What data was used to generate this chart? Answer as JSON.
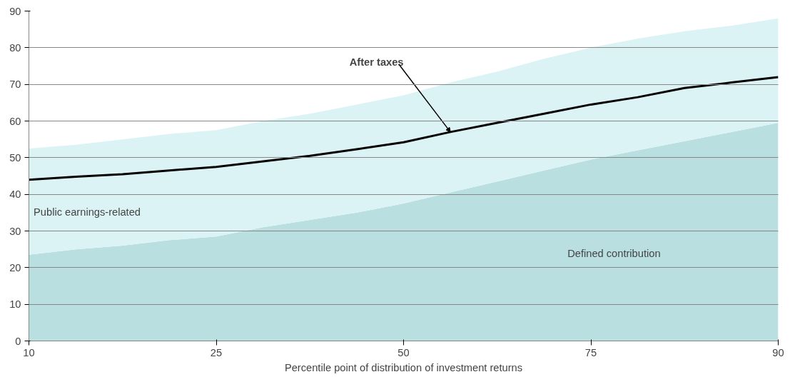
{
  "chart_data": {
    "type": "area",
    "stacked": true,
    "xlabel": "Percentile point of distribution of investment returns",
    "categories": [
      "10",
      null,
      null,
      null,
      "25",
      null,
      null,
      null,
      "50",
      null,
      null,
      null,
      "75",
      null,
      null,
      null,
      "90"
    ],
    "series": [
      {
        "name": "Defined contribution",
        "color": "#b9dfe1",
        "values": [
          23.5,
          25,
          26,
          27.5,
          28.5,
          31,
          33,
          35,
          37.5,
          40.5,
          43.5,
          46.5,
          49.5,
          52,
          54.5,
          57,
          59.5
        ]
      },
      {
        "name": "Public earnings-related",
        "color": "#dcf3f5",
        "values": [
          29,
          28.5,
          29,
          29,
          29,
          29,
          29,
          29.5,
          29.5,
          30,
          30,
          30.5,
          30.5,
          30.5,
          30,
          29,
          28.5
        ]
      },
      {
        "name": "After taxes",
        "type": "line",
        "color": "#000000",
        "values": [
          44,
          44.8,
          45.5,
          46.5,
          47.5,
          49,
          50.5,
          52.3,
          54.2,
          57,
          59.5,
          62,
          64.5,
          66.5,
          69,
          70.5,
          72
        ]
      }
    ],
    "ylim": [
      0,
      90
    ],
    "yticks": [
      0,
      10,
      20,
      30,
      40,
      50,
      60,
      70,
      80,
      90
    ],
    "grid": "y"
  }
}
